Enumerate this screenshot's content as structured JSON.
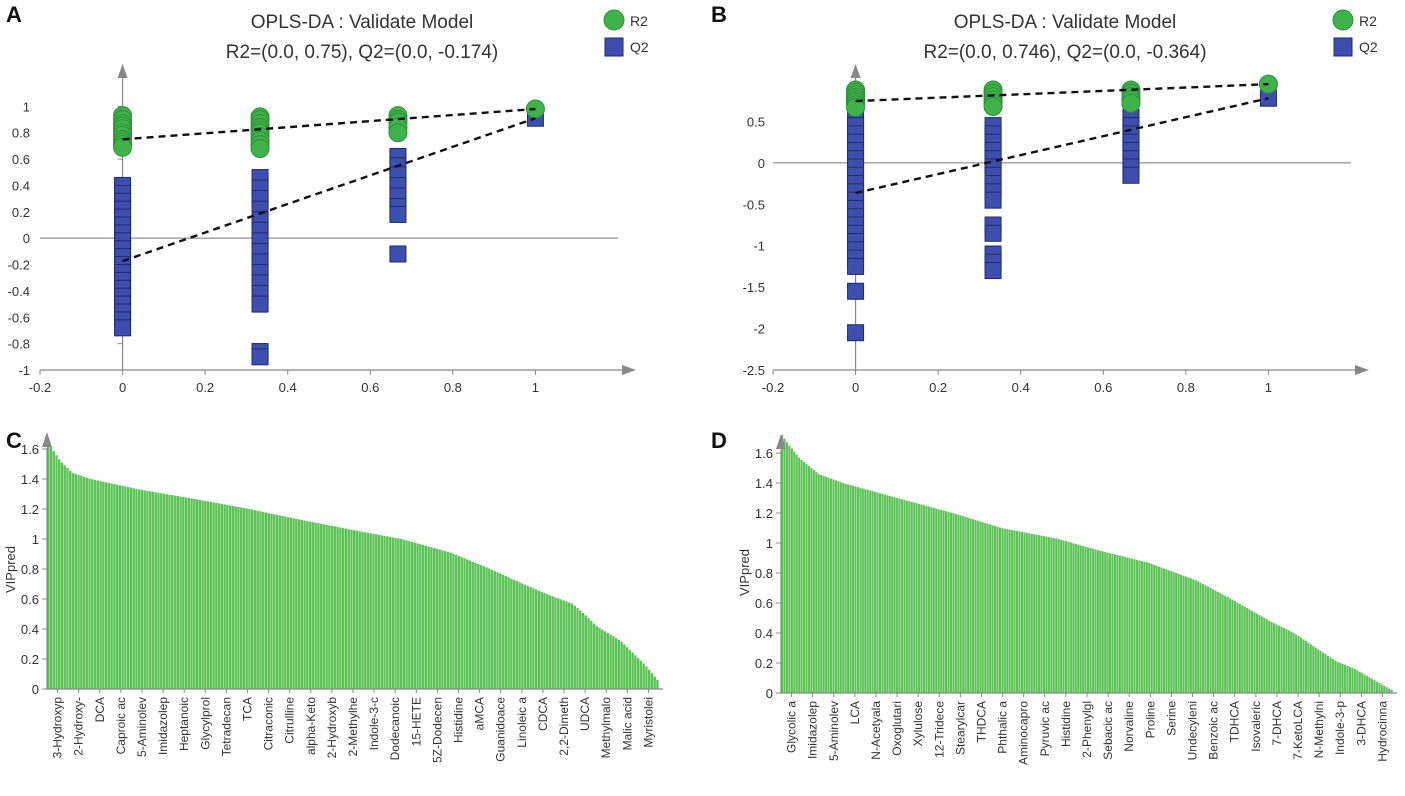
{
  "figure": {
    "panel_labels": [
      "A",
      "B",
      "C",
      "D"
    ]
  },
  "colors": {
    "r2": "#3db34a",
    "r2_stroke": "#2f8f3a",
    "q2": "#3d4fae",
    "q2_stroke": "#1f2a6b",
    "bar": "#5cc356",
    "axis": "#888888",
    "zero_line": "#777777",
    "trend": "#111111"
  },
  "chart_data": [
    {
      "panel": "A",
      "type": "scatter",
      "title": "OPLS-DA : Validate Model",
      "subtitle": "R2=(0.0, 0.75), Q2=(0.0, -0.174)",
      "legend": [
        "R2",
        "Q2"
      ],
      "legend_position": "top-right",
      "xlim": [
        -0.2,
        1.2
      ],
      "ylim": [
        -1.0,
        1.2
      ],
      "x_ticks": [
        -0.2,
        0,
        0.2,
        0.4,
        0.6,
        0.8,
        1
      ],
      "x_tick_labels": [
        "-0.2",
        "0",
        "0.2",
        "0.4",
        "0.6",
        "0.8",
        "1"
      ],
      "y_ticks": [
        -1,
        -0.8,
        -0.6,
        -0.4,
        -0.2,
        0,
        0.2,
        0.4,
        0.6,
        0.8,
        1
      ],
      "y_tick_labels": [
        "-1",
        "-0.8",
        "-0.6",
        "-0.4",
        "-0.2",
        "0",
        "0.2",
        "0.4",
        "0.6",
        "0.8",
        "1"
      ],
      "series": [
        {
          "name": "R2",
          "points": [
            [
              0,
              0.93
            ],
            [
              0,
              0.9
            ],
            [
              0,
              0.87
            ],
            [
              0,
              0.85
            ],
            [
              0,
              0.83
            ],
            [
              0,
              0.8
            ],
            [
              0,
              0.78
            ],
            [
              0,
              0.75
            ],
            [
              0,
              0.73
            ],
            [
              0,
              0.71
            ],
            [
              0,
              0.69
            ],
            [
              0.333,
              0.92
            ],
            [
              0.333,
              0.9
            ],
            [
              0.333,
              0.87
            ],
            [
              0.333,
              0.84
            ],
            [
              0.333,
              0.82
            ],
            [
              0.333,
              0.8
            ],
            [
              0.333,
              0.77
            ],
            [
              0.333,
              0.74
            ],
            [
              0.333,
              0.71
            ],
            [
              0.333,
              0.68
            ],
            [
              0.667,
              0.93
            ],
            [
              0.667,
              0.9
            ],
            [
              0.667,
              0.88
            ],
            [
              0.667,
              0.84
            ],
            [
              0.667,
              0.8
            ],
            [
              1,
              0.98
            ]
          ]
        },
        {
          "name": "Q2",
          "points": [
            [
              0,
              0.4
            ],
            [
              0,
              0.34
            ],
            [
              0,
              0.28
            ],
            [
              0,
              0.22
            ],
            [
              0,
              0.16
            ],
            [
              0,
              0.1
            ],
            [
              0,
              0.04
            ],
            [
              0,
              -0.02
            ],
            [
              0,
              -0.08
            ],
            [
              0,
              -0.14
            ],
            [
              0,
              -0.2
            ],
            [
              0,
              -0.26
            ],
            [
              0,
              -0.32
            ],
            [
              0,
              -0.38
            ],
            [
              0,
              -0.44
            ],
            [
              0,
              -0.5
            ],
            [
              0,
              -0.56
            ],
            [
              0,
              -0.62
            ],
            [
              0,
              -0.68
            ],
            [
              0.333,
              0.46
            ],
            [
              0.333,
              0.38
            ],
            [
              0.333,
              0.3
            ],
            [
              0.333,
              0.22
            ],
            [
              0.333,
              0.14
            ],
            [
              0.333,
              0.06
            ],
            [
              0.333,
              -0.02
            ],
            [
              0.333,
              -0.1
            ],
            [
              0.333,
              -0.18
            ],
            [
              0.333,
              -0.26
            ],
            [
              0.333,
              -0.34
            ],
            [
              0.333,
              -0.42
            ],
            [
              0.333,
              -0.5
            ],
            [
              0.333,
              -0.86
            ],
            [
              0.333,
              -0.9
            ],
            [
              0.667,
              0.62
            ],
            [
              0.667,
              0.55
            ],
            [
              0.667,
              0.48
            ],
            [
              0.667,
              0.4
            ],
            [
              0.667,
              0.32
            ],
            [
              0.667,
              0.24
            ],
            [
              0.667,
              0.18
            ],
            [
              0.667,
              -0.12
            ],
            [
              1,
              0.91
            ]
          ]
        }
      ],
      "trend_lines": [
        {
          "name": "R2",
          "from": [
            0,
            0.75
          ],
          "to": [
            1,
            0.98
          ]
        },
        {
          "name": "Q2",
          "from": [
            0,
            -0.174
          ],
          "to": [
            1,
            0.91
          ]
        }
      ]
    },
    {
      "panel": "B",
      "type": "scatter",
      "title": "OPLS-DA : Validate Model",
      "subtitle": "R2=(0.0, 0.746), Q2=(0.0, -0.364)",
      "legend": [
        "R2",
        "Q2"
      ],
      "legend_position": "top-right",
      "xlim": [
        -0.2,
        1.2
      ],
      "ylim": [
        -2.5,
        1.0
      ],
      "x_ticks": [
        -0.2,
        0,
        0.2,
        0.4,
        0.6,
        0.8,
        1
      ],
      "x_tick_labels": [
        "-0.2",
        "0",
        "0.2",
        "0.4",
        "0.6",
        "0.8",
        "1"
      ],
      "y_ticks": [
        -2.5,
        -2,
        -1.5,
        -1,
        -0.5,
        0,
        0.5
      ],
      "y_tick_labels": [
        "-2.5",
        "-2",
        "-1.5",
        "-1",
        "-0.5",
        "0",
        "0.5"
      ],
      "series": [
        {
          "name": "R2",
          "points": [
            [
              0,
              0.88
            ],
            [
              0,
              0.85
            ],
            [
              0,
              0.82
            ],
            [
              0,
              0.79
            ],
            [
              0,
              0.76
            ],
            [
              0,
              0.73
            ],
            [
              0,
              0.7
            ],
            [
              0,
              0.67
            ],
            [
              0.333,
              0.88
            ],
            [
              0.333,
              0.84
            ],
            [
              0.333,
              0.8
            ],
            [
              0.333,
              0.76
            ],
            [
              0.333,
              0.72
            ],
            [
              0.333,
              0.68
            ],
            [
              0.667,
              0.88
            ],
            [
              0.667,
              0.84
            ],
            [
              0.667,
              0.8
            ],
            [
              0.667,
              0.76
            ],
            [
              0.667,
              0.72
            ],
            [
              1,
              0.95
            ]
          ]
        },
        {
          "name": "Q2",
          "points": [
            [
              0,
              0.55
            ],
            [
              0,
              0.45
            ],
            [
              0,
              0.35
            ],
            [
              0,
              0.25
            ],
            [
              0,
              0.15
            ],
            [
              0,
              0.05
            ],
            [
              0,
              -0.05
            ],
            [
              0,
              -0.15
            ],
            [
              0,
              -0.25
            ],
            [
              0,
              -0.35
            ],
            [
              0,
              -0.45
            ],
            [
              0,
              -0.55
            ],
            [
              0,
              -0.65
            ],
            [
              0,
              -0.75
            ],
            [
              0,
              -0.85
            ],
            [
              0,
              -0.95
            ],
            [
              0,
              -1.05
            ],
            [
              0,
              -1.15
            ],
            [
              0,
              -1.25
            ],
            [
              0,
              -1.55
            ],
            [
              0,
              -2.05
            ],
            [
              0.333,
              0.45
            ],
            [
              0.333,
              0.35
            ],
            [
              0.333,
              0.25
            ],
            [
              0.333,
              0.15
            ],
            [
              0.333,
              0.05
            ],
            [
              0.333,
              -0.05
            ],
            [
              0.333,
              -0.15
            ],
            [
              0.333,
              -0.25
            ],
            [
              0.333,
              -0.35
            ],
            [
              0.333,
              -0.45
            ],
            [
              0.333,
              -0.75
            ],
            [
              0.333,
              -0.85
            ],
            [
              0.333,
              -1.1
            ],
            [
              0.333,
              -1.2
            ],
            [
              0.333,
              -1.3
            ],
            [
              0.667,
              0.55
            ],
            [
              0.667,
              0.45
            ],
            [
              0.667,
              0.35
            ],
            [
              0.667,
              0.25
            ],
            [
              0.667,
              0.15
            ],
            [
              0.667,
              0.05
            ],
            [
              0.667,
              -0.05
            ],
            [
              0.667,
              -0.15
            ],
            [
              1,
              0.78
            ]
          ]
        }
      ],
      "trend_lines": [
        {
          "name": "R2",
          "from": [
            0,
            0.746
          ],
          "to": [
            1,
            0.95
          ]
        },
        {
          "name": "Q2",
          "from": [
            0,
            -0.364
          ],
          "to": [
            1,
            0.78
          ]
        }
      ]
    },
    {
      "panel": "C",
      "type": "bar",
      "ylabel": "VIPpred",
      "ylim": [
        0,
        1.7
      ],
      "y_ticks": [
        0,
        0.2,
        0.4,
        0.6,
        0.8,
        1,
        1.2,
        1.4,
        1.6
      ],
      "y_tick_labels": [
        "0",
        "0.2",
        "0.4",
        "0.6",
        "0.8",
        "1",
        "1.2",
        "1.4",
        "1.6"
      ],
      "bar_count": 222,
      "labeled_categories": [
        "3-Hydroxyp",
        "2-Hydroxy-",
        "DCA",
        "Caproic ac",
        "5-Aminolev",
        "Imidazolep",
        "Heptanoic",
        "Glycylprol",
        "Tetradecan",
        "TCA",
        "Citraconic",
        "Citrulline",
        "alpha-Keto",
        "2-Hydroxyb",
        "2-Methylhe",
        "Indole-3-c",
        "Dodecanoic",
        "15-HETE",
        "5Z-Dodecen",
        "Histidine",
        "aMCA",
        "Guanidoace",
        "Linoleic a",
        "CDCA",
        "2,2-Dimeth",
        "UDCA",
        "Methylmalo",
        "Malic acid",
        "Myristolei"
      ],
      "profile": [
        [
          0,
          1.64
        ],
        [
          0.01,
          1.58
        ],
        [
          0.02,
          1.52
        ],
        [
          0.04,
          1.44
        ],
        [
          0.07,
          1.4
        ],
        [
          0.15,
          1.33
        ],
        [
          0.25,
          1.26
        ],
        [
          0.33,
          1.2
        ],
        [
          0.4,
          1.14
        ],
        [
          0.5,
          1.06
        ],
        [
          0.58,
          1.0
        ],
        [
          0.66,
          0.91
        ],
        [
          0.72,
          0.81
        ],
        [
          0.78,
          0.7
        ],
        [
          0.82,
          0.63
        ],
        [
          0.86,
          0.57
        ],
        [
          0.88,
          0.5
        ],
        [
          0.9,
          0.42
        ],
        [
          0.92,
          0.37
        ],
        [
          0.94,
          0.32
        ],
        [
          0.96,
          0.24
        ],
        [
          0.98,
          0.16
        ],
        [
          1.0,
          0.06
        ]
      ]
    },
    {
      "panel": "D",
      "type": "bar",
      "ylabel": "VIPpred",
      "ylim": [
        0,
        1.7
      ],
      "y_ticks": [
        0,
        0.2,
        0.4,
        0.6,
        0.8,
        1,
        1.2,
        1.4,
        1.6
      ],
      "y_tick_labels": [
        "0",
        "0.2",
        "0.4",
        "0.6",
        "0.8",
        "1",
        "1.2",
        "1.4",
        "1.6"
      ],
      "bar_count": 250,
      "labeled_categories": [
        "Glycolic a",
        "Imidazolep",
        "5-Aminolev",
        "LCA",
        "N-Acetyala",
        "Oxoglutari",
        "Xylulose",
        "12-Tridece",
        "Stearylcar",
        "THDCA",
        "Phthalic a",
        "Aminocapro",
        "Pyruvic ac",
        "Histidine",
        "2-Phenylgl",
        "Sebacic ac",
        "Norvaline",
        "Proline",
        "Serine",
        "Undecyleni",
        "Benzoic ac",
        "TDHCA",
        "Isovaleric",
        "7-DHCA",
        "7-KetoLCA",
        "N-Methylni",
        "Indole-3-p",
        "3-DHCA",
        "Hydrocinna"
      ],
      "profile": [
        [
          0,
          1.72
        ],
        [
          0.01,
          1.66
        ],
        [
          0.03,
          1.56
        ],
        [
          0.06,
          1.46
        ],
        [
          0.1,
          1.4
        ],
        [
          0.18,
          1.31
        ],
        [
          0.28,
          1.2
        ],
        [
          0.36,
          1.1
        ],
        [
          0.45,
          1.03
        ],
        [
          0.52,
          0.95
        ],
        [
          0.6,
          0.87
        ],
        [
          0.68,
          0.75
        ],
        [
          0.74,
          0.62
        ],
        [
          0.8,
          0.48
        ],
        [
          0.84,
          0.4
        ],
        [
          0.88,
          0.29
        ],
        [
          0.91,
          0.21
        ],
        [
          0.94,
          0.16
        ],
        [
          0.97,
          0.09
        ],
        [
          1.0,
          0.02
        ]
      ]
    }
  ]
}
